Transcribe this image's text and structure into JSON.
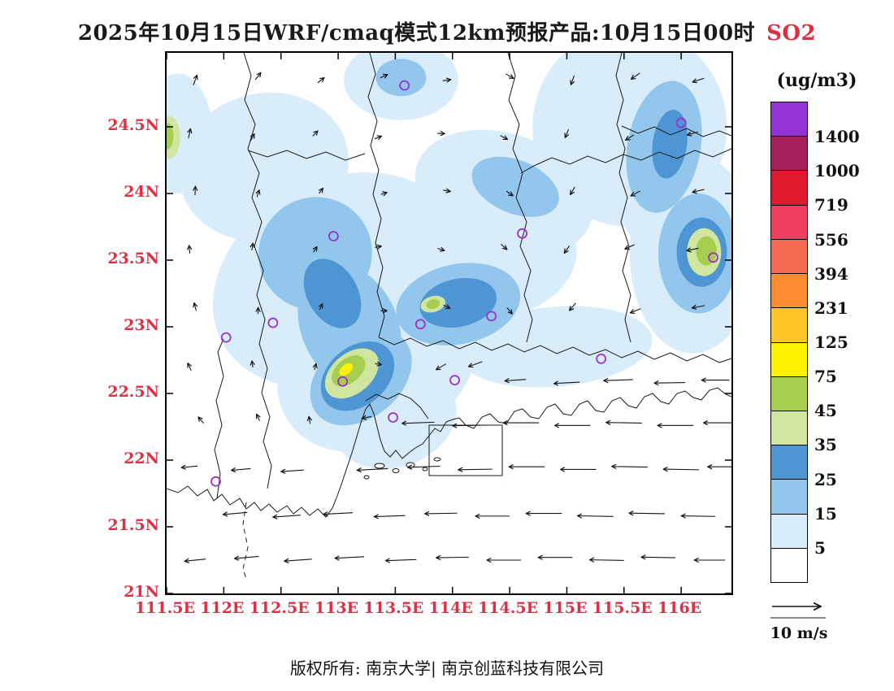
{
  "title": {
    "main": "2025年10月15日WRF/cmaq模式12km预报产品:10月15日00时",
    "species": "SO2"
  },
  "footer": {
    "text": "版权所有: 南京大学| 南京创蓝科技有限公司"
  },
  "colors": {
    "accent_red": "#DC3145",
    "marker_purple": "#9932CC",
    "line_black": "#141414"
  },
  "chart_data": {
    "type": "heatmap",
    "title": "2025年10月15日WRF/cmaq模式12km预报产品:10月15日00时 SO2",
    "species": "SO2",
    "lon_range": [
      111.5,
      116.44
    ],
    "lat_range": [
      21.0,
      25.05
    ],
    "lat_ticks": [
      {
        "label": "24.5N",
        "lat": 24.5
      },
      {
        "label": "24N",
        "lat": 24.0
      },
      {
        "label": "23.5N",
        "lat": 23.5
      },
      {
        "label": "23N",
        "lat": 23.0
      },
      {
        "label": "22.5N",
        "lat": 22.5
      },
      {
        "label": "22N",
        "lat": 22.0
      },
      {
        "label": "21.5N",
        "lat": 21.5
      },
      {
        "label": "21N",
        "lat": 21.0
      }
    ],
    "lon_ticks": [
      {
        "label": "111.5E",
        "lon": 111.5
      },
      {
        "label": "112E",
        "lon": 112.0
      },
      {
        "label": "112.5E",
        "lon": 112.5
      },
      {
        "label": "113E",
        "lon": 113.0
      },
      {
        "label": "113.5E",
        "lon": 113.5
      },
      {
        "label": "114E",
        "lon": 114.0
      },
      {
        "label": "114.5E",
        "lon": 114.5
      },
      {
        "label": "115E",
        "lon": 115.0
      },
      {
        "label": "115.5E",
        "lon": 115.5
      },
      {
        "label": "116E",
        "lon": 116.0
      }
    ],
    "colorbar": {
      "units": "(ug/m3)",
      "levels": [
        5,
        15,
        25,
        35,
        45,
        75,
        125,
        231,
        394,
        556,
        719,
        1000,
        1400
      ],
      "band_colors_bottom_to_top": [
        "#FFFFFF",
        "#D8EDF9",
        "#92C6EC",
        "#4E96D3",
        "#CFE5A0",
        "#A6CE50",
        "#FFF200",
        "#FFC425",
        "#FB8C32",
        "#F4694F",
        "#F03E5E",
        "#E0192E",
        "#A5205A",
        "#9333D6"
      ]
    },
    "wind_scale": {
      "label": "10 m/s",
      "value": 10
    },
    "fill_regions": [
      [
        113.0,
        23.35,
        1.15,
        0.75,
        -28,
        1
      ],
      [
        113.35,
        22.75,
        0.95,
        0.62,
        -35,
        1
      ],
      [
        112.35,
        24.2,
        0.75,
        0.55,
        -15,
        1
      ],
      [
        113.55,
        24.85,
        0.5,
        0.3,
        0,
        1
      ],
      [
        115.55,
        24.5,
        0.85,
        0.75,
        0,
        1
      ],
      [
        114.45,
        24.0,
        0.8,
        0.45,
        18,
        1
      ],
      [
        116.1,
        23.55,
        0.55,
        0.75,
        0,
        1
      ],
      [
        114.9,
        22.85,
        0.85,
        0.3,
        -5,
        1
      ],
      [
        113.5,
        22.3,
        0.55,
        0.35,
        -20,
        1
      ],
      [
        111.6,
        24.45,
        0.3,
        0.45,
        0,
        1
      ],
      [
        114.5,
        23.5,
        0.6,
        0.4,
        -20,
        1
      ],
      [
        115.9,
        24.0,
        0.45,
        0.5,
        0,
        1
      ],
      [
        112.8,
        23.55,
        0.5,
        0.42,
        -35,
        2
      ],
      [
        113.1,
        23.0,
        0.42,
        0.5,
        -25,
        2
      ],
      [
        114.05,
        23.17,
        0.55,
        0.3,
        -12,
        2
      ],
      [
        113.2,
        22.62,
        0.5,
        0.3,
        -40,
        2
      ],
      [
        115.85,
        24.35,
        0.32,
        0.5,
        10,
        2
      ],
      [
        116.15,
        23.55,
        0.35,
        0.45,
        0,
        2
      ],
      [
        114.55,
        24.05,
        0.4,
        0.2,
        22,
        2
      ],
      [
        113.55,
        24.87,
        0.22,
        0.14,
        0,
        2
      ],
      [
        114.05,
        23.18,
        0.34,
        0.18,
        -12,
        3
      ],
      [
        113.17,
        22.63,
        0.36,
        0.22,
        -40,
        3
      ],
      [
        115.9,
        24.37,
        0.15,
        0.26,
        8,
        3
      ],
      [
        116.18,
        23.56,
        0.22,
        0.26,
        0,
        3
      ],
      [
        112.95,
        23.25,
        0.22,
        0.28,
        -30,
        3
      ],
      [
        113.12,
        22.65,
        0.27,
        0.15,
        -40,
        4
      ],
      [
        116.2,
        23.56,
        0.15,
        0.18,
        0,
        4
      ],
      [
        111.52,
        24.42,
        0.1,
        0.16,
        0,
        4
      ],
      [
        113.83,
        23.17,
        0.11,
        0.06,
        -15,
        4
      ],
      [
        113.09,
        22.67,
        0.17,
        0.09,
        -40,
        5
      ],
      [
        116.22,
        23.57,
        0.09,
        0.11,
        0,
        5
      ],
      [
        111.5,
        24.43,
        0.06,
        0.1,
        0,
        5
      ],
      [
        113.83,
        23.17,
        0.06,
        0.035,
        -15,
        5
      ],
      [
        113.07,
        22.68,
        0.07,
        0.035,
        -40,
        6
      ]
    ],
    "city_markers": [
      [
        113.58,
        24.81
      ],
      [
        116.0,
        24.53
      ],
      [
        112.96,
        23.68
      ],
      [
        114.61,
        23.7
      ],
      [
        116.28,
        23.52
      ],
      [
        112.43,
        23.03
      ],
      [
        112.02,
        22.92
      ],
      [
        113.72,
        23.02
      ],
      [
        114.34,
        23.08
      ],
      [
        115.3,
        22.76
      ],
      [
        113.04,
        22.59
      ],
      [
        114.02,
        22.6
      ],
      [
        113.48,
        22.32
      ],
      [
        111.93,
        21.84
      ]
    ],
    "wind_vectors": [
      [
        113.7,
        22.28,
        182,
        40
      ],
      [
        114.15,
        22.26,
        181,
        42
      ],
      [
        114.6,
        22.28,
        180,
        44
      ],
      [
        115.05,
        22.26,
        180,
        44
      ],
      [
        115.5,
        22.28,
        179,
        44
      ],
      [
        115.95,
        22.26,
        180,
        44
      ],
      [
        116.33,
        22.28,
        180,
        38
      ],
      [
        113.3,
        21.93,
        183,
        38
      ],
      [
        113.75,
        21.95,
        182,
        40
      ],
      [
        114.2,
        21.93,
        181,
        42
      ],
      [
        114.65,
        21.95,
        180,
        44
      ],
      [
        115.1,
        21.93,
        180,
        44
      ],
      [
        115.55,
        21.95,
        179,
        44
      ],
      [
        116.0,
        21.93,
        179,
        44
      ],
      [
        116.36,
        21.95,
        180,
        36
      ],
      [
        112.1,
        21.6,
        185,
        30
      ],
      [
        112.55,
        21.58,
        184,
        34
      ],
      [
        113.0,
        21.6,
        183,
        36
      ],
      [
        113.45,
        21.58,
        182,
        38
      ],
      [
        113.9,
        21.6,
        181,
        40
      ],
      [
        114.35,
        21.58,
        180,
        42
      ],
      [
        114.8,
        21.6,
        180,
        44
      ],
      [
        115.25,
        21.58,
        179,
        44
      ],
      [
        115.7,
        21.6,
        179,
        44
      ],
      [
        116.15,
        21.58,
        179,
        42
      ],
      [
        111.75,
        21.25,
        186,
        26
      ],
      [
        112.2,
        21.27,
        185,
        30
      ],
      [
        112.65,
        21.25,
        184,
        34
      ],
      [
        113.1,
        21.27,
        183,
        36
      ],
      [
        113.55,
        21.25,
        182,
        38
      ],
      [
        114.0,
        21.27,
        181,
        40
      ],
      [
        114.45,
        21.25,
        180,
        42
      ],
      [
        114.9,
        21.27,
        180,
        42
      ],
      [
        115.35,
        21.25,
        179,
        42
      ],
      [
        115.8,
        21.27,
        179,
        42
      ],
      [
        116.25,
        21.25,
        180,
        38
      ],
      [
        111.7,
        21.95,
        186,
        20
      ],
      [
        112.15,
        21.93,
        185,
        24
      ],
      [
        112.6,
        21.92,
        184,
        28
      ],
      [
        114.55,
        22.6,
        184,
        26
      ],
      [
        115.0,
        22.58,
        183,
        32
      ],
      [
        115.45,
        22.6,
        182,
        36
      ],
      [
        115.9,
        22.58,
        181,
        38
      ],
      [
        116.3,
        22.6,
        180,
        34
      ],
      [
        111.75,
        24.85,
        70,
        13
      ],
      [
        112.3,
        24.88,
        52,
        11
      ],
      [
        112.85,
        24.85,
        38,
        10
      ],
      [
        113.4,
        24.88,
        24,
        10
      ],
      [
        113.95,
        24.85,
        8,
        10
      ],
      [
        114.5,
        24.88,
        330,
        11
      ],
      [
        115.05,
        24.85,
        250,
        12
      ],
      [
        115.6,
        24.88,
        215,
        13
      ],
      [
        116.15,
        24.85,
        198,
        15
      ],
      [
        111.7,
        24.45,
        78,
        12
      ],
      [
        112.25,
        24.42,
        62,
        10
      ],
      [
        112.8,
        24.45,
        45,
        9
      ],
      [
        113.35,
        24.42,
        22,
        9
      ],
      [
        113.9,
        24.45,
        358,
        9
      ],
      [
        114.45,
        24.42,
        332,
        10
      ],
      [
        115.0,
        24.45,
        248,
        11
      ],
      [
        115.55,
        24.42,
        212,
        12
      ],
      [
        116.1,
        24.45,
        196,
        14
      ],
      [
        111.75,
        24.02,
        88,
        11
      ],
      [
        112.3,
        24.0,
        72,
        9
      ],
      [
        112.85,
        24.02,
        52,
        8
      ],
      [
        113.4,
        24.0,
        18,
        8
      ],
      [
        113.95,
        24.02,
        350,
        9
      ],
      [
        114.5,
        24.0,
        325,
        10
      ],
      [
        115.05,
        24.02,
        240,
        11
      ],
      [
        115.6,
        24.0,
        208,
        13
      ],
      [
        116.15,
        24.02,
        194,
        15
      ],
      [
        111.7,
        23.58,
        95,
        10
      ],
      [
        112.25,
        23.6,
        80,
        9
      ],
      [
        112.8,
        23.58,
        58,
        8
      ],
      [
        113.35,
        23.6,
        10,
        8
      ],
      [
        113.9,
        23.58,
        342,
        9
      ],
      [
        114.45,
        23.6,
        318,
        10
      ],
      [
        115.0,
        23.58,
        235,
        11
      ],
      [
        115.55,
        23.6,
        205,
        13
      ],
      [
        116.1,
        23.58,
        192,
        15
      ],
      [
        111.75,
        23.15,
        105,
        10
      ],
      [
        112.3,
        23.12,
        88,
        8
      ],
      [
        112.85,
        23.15,
        65,
        8
      ],
      [
        113.4,
        23.12,
        2,
        8
      ],
      [
        113.95,
        23.15,
        335,
        9
      ],
      [
        114.5,
        23.12,
        310,
        10
      ],
      [
        115.05,
        23.15,
        230,
        12
      ],
      [
        115.6,
        23.12,
        202,
        14
      ],
      [
        116.15,
        23.15,
        190,
        16
      ],
      [
        111.7,
        22.7,
        115,
        10
      ],
      [
        112.25,
        22.72,
        98,
        8
      ],
      [
        112.8,
        22.7,
        75,
        8
      ],
      [
        113.35,
        22.72,
        352,
        8
      ],
      [
        113.9,
        22.7,
        210,
        14
      ],
      [
        114.2,
        22.72,
        200,
        18
      ],
      [
        111.8,
        22.3,
        130,
        10
      ],
      [
        112.3,
        22.32,
        115,
        9
      ],
      [
        112.75,
        22.3,
        100,
        9
      ],
      [
        113.25,
        22.32,
        190,
        12
      ]
    ]
  }
}
